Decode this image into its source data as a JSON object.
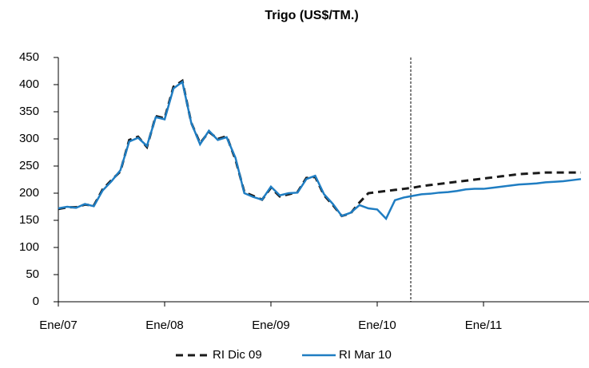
{
  "chart_data": {
    "type": "line",
    "title": "Trigo (US$/TM.)",
    "categories": [
      "Ene/07",
      null,
      null,
      null,
      null,
      null,
      null,
      null,
      null,
      null,
      null,
      null,
      "Ene/08",
      null,
      null,
      null,
      null,
      null,
      null,
      null,
      null,
      null,
      null,
      null,
      "Ene/09",
      null,
      null,
      null,
      null,
      null,
      null,
      null,
      null,
      null,
      null,
      null,
      "Ene/10",
      null,
      null,
      null,
      null,
      null,
      null,
      null,
      null,
      null,
      null,
      null,
      "Ene/11",
      null,
      null,
      null,
      null,
      null,
      null,
      null,
      null,
      null,
      null,
      null
    ],
    "series": [
      {
        "name": "RI Dic 09",
        "color": "#1a1a1a",
        "dash": true,
        "values": [
          171,
          174,
          174,
          179,
          177,
          207,
          224,
          240,
          298,
          304,
          285,
          342,
          338,
          396,
          407,
          330,
          292,
          313,
          300,
          305,
          262,
          202,
          195,
          188,
          210,
          194,
          198,
          202,
          228,
          230,
          196,
          178,
          158,
          163,
          183,
          200,
          202,
          204,
          206,
          208,
          210,
          213,
          215,
          217,
          219,
          221,
          223,
          225,
          227,
          229,
          231,
          233,
          235,
          236,
          237,
          238,
          238,
          238,
          238,
          238
        ]
      },
      {
        "name": "RI Mar 10",
        "color": "#1f7dc2",
        "dash": false,
        "values": [
          172,
          175,
          173,
          180,
          176,
          205,
          222,
          242,
          295,
          302,
          287,
          340,
          336,
          393,
          405,
          330,
          290,
          315,
          298,
          303,
          265,
          200,
          193,
          188,
          212,
          196,
          200,
          201,
          226,
          232,
          198,
          180,
          158,
          164,
          178,
          172,
          170,
          153,
          187,
          192,
          195,
          198,
          199,
          201,
          202,
          204,
          207,
          208,
          208,
          210,
          212,
          214,
          216,
          217,
          218,
          220,
          221,
          222,
          224,
          226
        ]
      }
    ],
    "ylim": [
      0,
      450
    ],
    "yticks": [
      0,
      50,
      100,
      150,
      200,
      250,
      300,
      350,
      400,
      450
    ]
  }
}
